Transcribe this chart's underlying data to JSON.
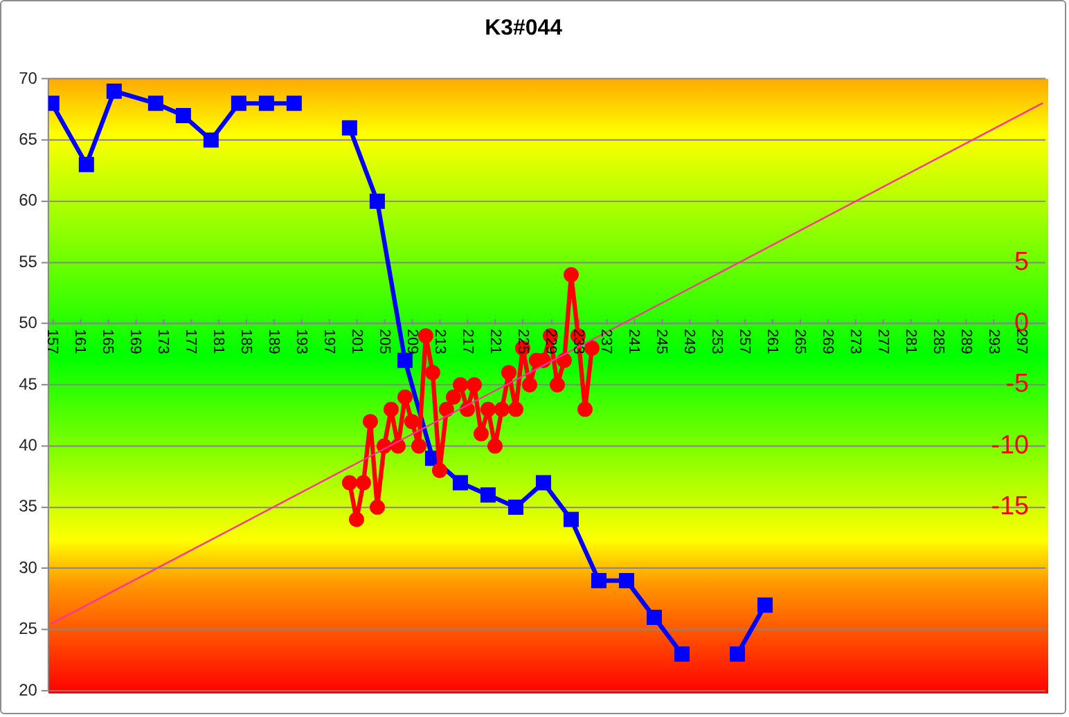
{
  "chart_data": {
    "type": "line",
    "title": "K3#044",
    "xlim": [
      156.5,
      300.5
    ],
    "xticks": [
      157,
      161,
      165,
      169,
      173,
      177,
      181,
      185,
      189,
      193,
      197,
      201,
      205,
      209,
      213,
      217,
      221,
      225,
      229,
      233,
      237,
      241,
      245,
      249,
      253,
      257,
      261,
      265,
      269,
      273,
      277,
      281,
      285,
      289,
      293,
      297
    ],
    "ylim": [
      20,
      70
    ],
    "yticks": [
      20,
      25,
      30,
      35,
      40,
      45,
      50,
      55,
      60,
      65,
      70
    ],
    "y2lim": [
      -30,
      20
    ],
    "y2ticks": [
      -15,
      -10,
      -5,
      0,
      5
    ],
    "grid": "y",
    "legend": false,
    "series": [
      {
        "color": "#0000ff",
        "marker": "square",
        "x": [
          157,
          162,
          166,
          172,
          176,
          180,
          184,
          188,
          192,
          196,
          200,
          204,
          208,
          212,
          216,
          220,
          224,
          228,
          232,
          236,
          240,
          244,
          248,
          252,
          256,
          260
        ],
        "values": [
          68,
          63,
          69,
          68,
          67,
          65,
          68,
          68,
          68,
          null,
          66,
          60,
          47,
          39,
          37,
          36,
          35,
          37,
          34,
          29,
          29,
          26,
          23,
          null,
          23,
          27
        ]
      },
      {
        "color": "#ff0000",
        "marker": "circle",
        "axis": "y2",
        "x": [
          200,
          201,
          202,
          203,
          204,
          205,
          206,
          207,
          208,
          209,
          210,
          211,
          212,
          213,
          214,
          215,
          216,
          217,
          218,
          219,
          220,
          221,
          222,
          223,
          224,
          225,
          226,
          227,
          228,
          229,
          230,
          231,
          232,
          233,
          234,
          235
        ],
        "values": [
          -13,
          -16,
          -13,
          -8,
          -15,
          -10,
          -7,
          -10,
          -6,
          -8,
          -10,
          -1,
          -4,
          -12,
          -7,
          -6,
          -5,
          -7,
          -5,
          -9,
          -7,
          -10,
          -7,
          -4,
          -7,
          -2,
          -5,
          -3,
          -3,
          -1,
          -5,
          -3,
          4,
          -1,
          -7,
          -2
        ]
      },
      {
        "type": "line",
        "color": "#ff3399",
        "marker": "none",
        "axis": "y2",
        "x": [
          157,
          300
        ],
        "values": [
          -24.5,
          18
        ]
      }
    ]
  }
}
